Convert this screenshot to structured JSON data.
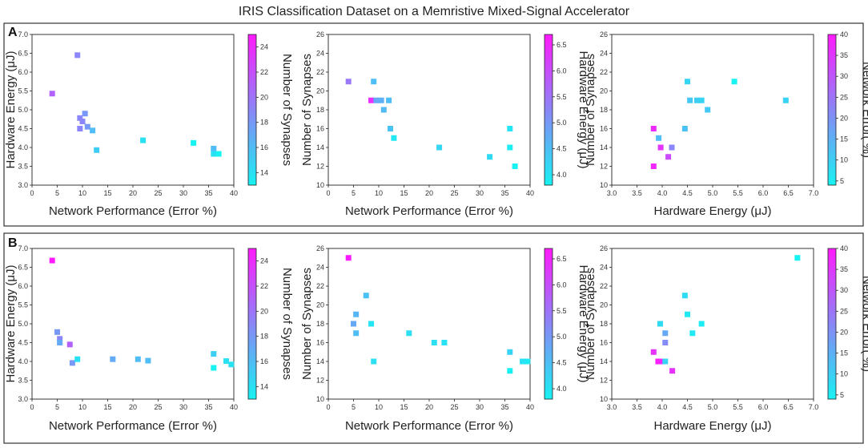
{
  "figure": {
    "title": "IRIS Classification Dataset on a Memristive Mixed-Signal Accelerator",
    "panel_labels": [
      "A",
      "B"
    ]
  },
  "colors": {
    "cmap_low": "#17f2f2",
    "cmap_high": "#ff1aff",
    "frame": "#333333"
  },
  "chart_data": [
    {
      "type": "scatter",
      "panel": "A",
      "xlabel": "Network Performance (Error %)",
      "ylabel": "Hardware Energy (μJ)",
      "colorbar_label": "Number of Synapses",
      "xlim": [
        0,
        40
      ],
      "ylim": [
        3.0,
        7.0
      ],
      "xticks": [
        "0",
        "5",
        "10",
        "15",
        "20",
        "25",
        "30",
        "35",
        "40"
      ],
      "yticks": [
        "3.0",
        "3.5",
        "4.0",
        "4.5",
        "5.0",
        "5.5",
        "6.0",
        "6.5",
        "7.0"
      ],
      "clim": [
        13,
        25
      ],
      "cticks": [
        "14",
        "16",
        "18",
        "20",
        "22",
        "24"
      ],
      "points": [
        {
          "x": 4,
          "y": 5.43,
          "c": 21
        },
        {
          "x": 9,
          "y": 6.45,
          "c": 19
        },
        {
          "x": 9.5,
          "y": 4.78,
          "c": 19
        },
        {
          "x": 10,
          "y": 4.69,
          "c": 19
        },
        {
          "x": 9.5,
          "y": 4.5,
          "c": 19
        },
        {
          "x": 10.5,
          "y": 4.9,
          "c": 18
        },
        {
          "x": 11,
          "y": 4.55,
          "c": 18
        },
        {
          "x": 12,
          "y": 4.45,
          "c": 16
        },
        {
          "x": 12.8,
          "y": 3.93,
          "c": 15
        },
        {
          "x": 22,
          "y": 4.19,
          "c": 14
        },
        {
          "x": 32,
          "y": 4.12,
          "c": 13
        },
        {
          "x": 36,
          "y": 3.97,
          "c": 16
        },
        {
          "x": 36,
          "y": 3.83,
          "c": 14
        },
        {
          "x": 37,
          "y": 3.83,
          "c": 12
        }
      ]
    },
    {
      "type": "scatter",
      "panel": "A",
      "xlabel": "Network Performance (Error %)",
      "ylabel": "Number of Synapses",
      "colorbar_label": "Hardware Energy (μJ)",
      "xlim": [
        0,
        40
      ],
      "ylim": [
        10,
        26
      ],
      "xticks": [
        "0",
        "5",
        "10",
        "15",
        "20",
        "25",
        "30",
        "35",
        "40"
      ],
      "yticks": [
        "10",
        "12",
        "14",
        "16",
        "18",
        "20",
        "22",
        "24",
        "26"
      ],
      "clim": [
        3.8,
        6.7
      ],
      "cticks": [
        "4.0",
        "4.5",
        "5.0",
        "5.5",
        "6.0",
        "6.5"
      ],
      "points": [
        {
          "x": 4,
          "y": 21,
          "c": 5.43
        },
        {
          "x": 9,
          "y": 21,
          "c": 4.5
        },
        {
          "x": 8.5,
          "y": 19,
          "c": 6.45
        },
        {
          "x": 9.5,
          "y": 19,
          "c": 4.78
        },
        {
          "x": 10.5,
          "y": 19,
          "c": 4.69
        },
        {
          "x": 12,
          "y": 19,
          "c": 4.5
        },
        {
          "x": 11,
          "y": 18,
          "c": 4.55
        },
        {
          "x": 12.3,
          "y": 16,
          "c": 4.45
        },
        {
          "x": 13,
          "y": 15,
          "c": 3.93
        },
        {
          "x": 22,
          "y": 14,
          "c": 4.19
        },
        {
          "x": 32,
          "y": 13,
          "c": 4.12
        },
        {
          "x": 36,
          "y": 16,
          "c": 3.97
        },
        {
          "x": 36,
          "y": 14,
          "c": 3.9
        },
        {
          "x": 37,
          "y": 12,
          "c": 3.83
        }
      ]
    },
    {
      "type": "scatter",
      "panel": "A",
      "xlabel": "Hardware Energy (μJ)",
      "ylabel": "Number of Synapses",
      "colorbar_label": "Network Error( %)",
      "xlim": [
        3.0,
        7.0
      ],
      "ylim": [
        10,
        26
      ],
      "xticks": [
        "3.0",
        "3.5",
        "4.0",
        "4.5",
        "5.0",
        "5.5",
        "6.0",
        "6.5",
        "7.0"
      ],
      "yticks": [
        "10",
        "12",
        "14",
        "16",
        "18",
        "20",
        "22",
        "24",
        "26"
      ],
      "clim": [
        4,
        40
      ],
      "cticks": [
        "5",
        "10",
        "15",
        "20",
        "25",
        "30",
        "35",
        "40"
      ],
      "points": [
        {
          "x": 3.83,
          "y": 16,
          "c": 37
        },
        {
          "x": 3.83,
          "y": 12,
          "c": 38
        },
        {
          "x": 3.93,
          "y": 15,
          "c": 13
        },
        {
          "x": 3.97,
          "y": 14,
          "c": 36
        },
        {
          "x": 4.12,
          "y": 13,
          "c": 32
        },
        {
          "x": 4.19,
          "y": 14,
          "c": 22
        },
        {
          "x": 4.45,
          "y": 16,
          "c": 12
        },
        {
          "x": 4.5,
          "y": 21,
          "c": 9
        },
        {
          "x": 4.55,
          "y": 19,
          "c": 11
        },
        {
          "x": 4.69,
          "y": 19,
          "c": 10
        },
        {
          "x": 4.78,
          "y": 19,
          "c": 9
        },
        {
          "x": 4.9,
          "y": 18,
          "c": 11
        },
        {
          "x": 5.43,
          "y": 21,
          "c": 4
        },
        {
          "x": 6.45,
          "y": 19,
          "c": 9
        }
      ]
    },
    {
      "type": "scatter",
      "panel": "B",
      "xlabel": "Network Performance (Error %)",
      "ylabel": "Hardware Energy (μJ)",
      "colorbar_label": "Number of Synapses",
      "xlim": [
        0,
        40
      ],
      "ylim": [
        3.0,
        7.0
      ],
      "xticks": [
        "0",
        "5",
        "10",
        "15",
        "20",
        "25",
        "30",
        "35",
        "40"
      ],
      "yticks": [
        "3.0",
        "3.5",
        "4.0",
        "4.5",
        "5.0",
        "5.5",
        "6.0",
        "6.5",
        "7.0"
      ],
      "clim": [
        13,
        25
      ],
      "cticks": [
        "14",
        "16",
        "18",
        "20",
        "22",
        "24"
      ],
      "points": [
        {
          "x": 4,
          "y": 6.68,
          "c": 25
        },
        {
          "x": 5,
          "y": 4.78,
          "c": 18
        },
        {
          "x": 5.5,
          "y": 4.6,
          "c": 19
        },
        {
          "x": 5.5,
          "y": 4.5,
          "c": 17
        },
        {
          "x": 7.5,
          "y": 4.45,
          "c": 21
        },
        {
          "x": 8,
          "y": 3.96,
          "c": 18
        },
        {
          "x": 9,
          "y": 4.06,
          "c": 14
        },
        {
          "x": 16,
          "y": 4.06,
          "c": 17
        },
        {
          "x": 21,
          "y": 4.06,
          "c": 16
        },
        {
          "x": 23,
          "y": 4.02,
          "c": 16
        },
        {
          "x": 36,
          "y": 4.2,
          "c": 15
        },
        {
          "x": 36,
          "y": 3.83,
          "c": 13
        },
        {
          "x": 38.5,
          "y": 4.01,
          "c": 14
        },
        {
          "x": 39.5,
          "y": 3.92,
          "c": 14
        }
      ]
    },
    {
      "type": "scatter",
      "panel": "B",
      "xlabel": "Network Performance (Error %)",
      "ylabel": "Number of Synapses",
      "colorbar_label": "Hardware Energy (μJ)",
      "xlim": [
        0,
        40
      ],
      "ylim": [
        10,
        26
      ],
      "xticks": [
        "0",
        "5",
        "10",
        "15",
        "20",
        "25",
        "30",
        "35",
        "40"
      ],
      "yticks": [
        "10",
        "12",
        "14",
        "16",
        "18",
        "20",
        "22",
        "24",
        "26"
      ],
      "clim": [
        3.8,
        6.7
      ],
      "cticks": [
        "4.0",
        "4.5",
        "5.0",
        "5.5",
        "6.0",
        "6.5"
      ],
      "points": [
        {
          "x": 4,
          "y": 25,
          "c": 6.68
        },
        {
          "x": 5,
          "y": 18,
          "c": 4.78
        },
        {
          "x": 5.5,
          "y": 19,
          "c": 4.6
        },
        {
          "x": 5.5,
          "y": 17,
          "c": 4.5
        },
        {
          "x": 7.5,
          "y": 21,
          "c": 4.45
        },
        {
          "x": 8.5,
          "y": 18,
          "c": 3.96
        },
        {
          "x": 9,
          "y": 14,
          "c": 4.06
        },
        {
          "x": 16,
          "y": 17,
          "c": 4.06
        },
        {
          "x": 21,
          "y": 16,
          "c": 4.06
        },
        {
          "x": 23,
          "y": 16,
          "c": 4.02
        },
        {
          "x": 36,
          "y": 15,
          "c": 4.2
        },
        {
          "x": 36,
          "y": 13,
          "c": 3.83
        },
        {
          "x": 38.5,
          "y": 14,
          "c": 4.01
        },
        {
          "x": 39.5,
          "y": 14,
          "c": 3.92
        }
      ]
    },
    {
      "type": "scatter",
      "panel": "B",
      "xlabel": "Hardware Energy (μJ)",
      "ylabel": "Number of Synapses",
      "colorbar_label": "Network Error( %)",
      "xlim": [
        3.0,
        7.0
      ],
      "ylim": [
        10,
        26
      ],
      "xticks": [
        "3.0",
        "3.5",
        "4.0",
        "4.5",
        "5.0",
        "5.5",
        "6.0",
        "6.5",
        "7.0"
      ],
      "yticks": [
        "10",
        "12",
        "14",
        "16",
        "18",
        "20",
        "22",
        "24",
        "26"
      ],
      "clim": [
        4,
        40
      ],
      "cticks": [
        "5",
        "10",
        "15",
        "20",
        "25",
        "30",
        "35",
        "40"
      ],
      "points": [
        {
          "x": 3.83,
          "y": 15,
          "c": 36
        },
        {
          "x": 3.92,
          "y": 14,
          "c": 39.5
        },
        {
          "x": 3.96,
          "y": 14,
          "c": 38.5
        },
        {
          "x": 3.96,
          "y": 18,
          "c": 8
        },
        {
          "x": 4.01,
          "y": 14,
          "c": 38
        },
        {
          "x": 4.06,
          "y": 14,
          "c": 9
        },
        {
          "x": 4.06,
          "y": 16,
          "c": 21
        },
        {
          "x": 4.06,
          "y": 17,
          "c": 16
        },
        {
          "x": 4.2,
          "y": 13,
          "c": 36
        },
        {
          "x": 4.45,
          "y": 21,
          "c": 7.5
        },
        {
          "x": 4.5,
          "y": 19,
          "c": 5.5
        },
        {
          "x": 4.6,
          "y": 17,
          "c": 5.5
        },
        {
          "x": 4.78,
          "y": 18,
          "c": 5
        },
        {
          "x": 6.68,
          "y": 25,
          "c": 4
        }
      ]
    }
  ]
}
